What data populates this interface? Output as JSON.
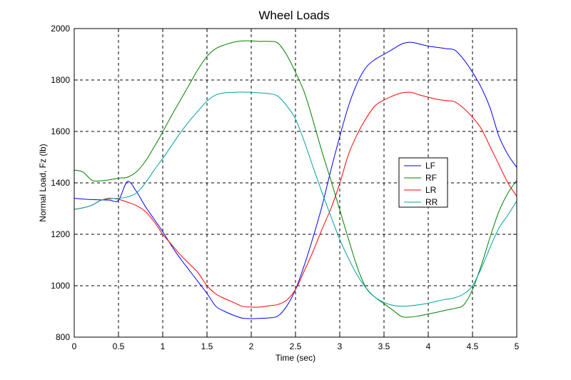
{
  "chart_data": {
    "type": "line",
    "title": "Wheel Loads",
    "xlabel": "Time (sec)",
    "ylabel": "Normal Load, Fz (lb)",
    "xlim": [
      0,
      5
    ],
    "ylim": [
      800,
      2000
    ],
    "xticks": [
      0,
      0.5,
      1,
      1.5,
      2,
      2.5,
      3,
      3.5,
      4,
      4.5,
      5
    ],
    "xtick_labels": [
      "0",
      "0.5",
      "1",
      "1.5",
      "2",
      "2.5",
      "3",
      "3.5",
      "4",
      "4.5",
      "5"
    ],
    "yticks": [
      800,
      1000,
      1200,
      1400,
      1600,
      1800,
      2000
    ],
    "ytick_labels": [
      "800",
      "1000",
      "1200",
      "1400",
      "1600",
      "1800",
      "2000"
    ],
    "grid": true,
    "legend_position": "center-right",
    "series": [
      {
        "name": "LF",
        "color": "#0000ff",
        "x": [
          0,
          0.1,
          0.2,
          0.3,
          0.4,
          0.5,
          0.6,
          0.7,
          0.8,
          0.9,
          1.0,
          1.1,
          1.2,
          1.3,
          1.4,
          1.5,
          1.6,
          1.7,
          1.8,
          1.9,
          2.0,
          2.1,
          2.2,
          2.3,
          2.4,
          2.5,
          2.6,
          2.7,
          2.8,
          2.9,
          3.0,
          3.1,
          3.2,
          3.3,
          3.4,
          3.5,
          3.6,
          3.7,
          3.8,
          3.9,
          4.0,
          4.1,
          4.2,
          4.3,
          4.4,
          4.5,
          4.6,
          4.7,
          4.8,
          4.9,
          5.0
        ],
        "y": [
          1340,
          1337,
          1335,
          1334,
          1333,
          1332,
          1405,
          1368,
          1310,
          1260,
          1210,
          1155,
          1105,
          1060,
          1015,
          970,
          920,
          900,
          885,
          874,
          872,
          873,
          875,
          882,
          920,
          985,
          1080,
          1190,
          1310,
          1450,
          1580,
          1700,
          1790,
          1850,
          1880,
          1900,
          1920,
          1940,
          1947,
          1940,
          1932,
          1927,
          1922,
          1916,
          1880,
          1830,
          1770,
          1690,
          1580,
          1510,
          1460
        ]
      },
      {
        "name": "RF",
        "color": "#008000",
        "x": [
          0,
          0.1,
          0.2,
          0.3,
          0.4,
          0.5,
          0.6,
          0.7,
          0.8,
          0.9,
          1.0,
          1.1,
          1.2,
          1.3,
          1.4,
          1.5,
          1.6,
          1.7,
          1.8,
          1.9,
          2.0,
          2.1,
          2.2,
          2.3,
          2.4,
          2.5,
          2.6,
          2.7,
          2.8,
          2.9,
          3.0,
          3.1,
          3.2,
          3.3,
          3.4,
          3.5,
          3.6,
          3.7,
          3.8,
          3.9,
          4.0,
          4.1,
          4.2,
          4.3,
          4.4,
          4.5,
          4.6,
          4.7,
          4.8,
          4.9,
          5.0
        ],
        "y": [
          1450,
          1442,
          1410,
          1408,
          1412,
          1418,
          1422,
          1442,
          1482,
          1538,
          1598,
          1662,
          1722,
          1782,
          1842,
          1892,
          1922,
          1937,
          1947,
          1952,
          1952,
          1950,
          1950,
          1944,
          1898,
          1830,
          1752,
          1640,
          1520,
          1410,
          1295,
          1180,
          1070,
          990,
          955,
          930,
          905,
          880,
          878,
          883,
          890,
          897,
          905,
          912,
          925,
          985,
          1080,
          1190,
          1290,
          1360,
          1410
        ]
      },
      {
        "name": "LR",
        "color": "#ff0000",
        "x": [
          0,
          0.1,
          0.2,
          0.3,
          0.4,
          0.5,
          0.6,
          0.7,
          0.8,
          0.9,
          1.0,
          1.1,
          1.2,
          1.3,
          1.4,
          1.5,
          1.6,
          1.7,
          1.8,
          1.9,
          2.0,
          2.1,
          2.2,
          2.3,
          2.4,
          2.5,
          2.6,
          2.7,
          2.8,
          2.9,
          3.0,
          3.1,
          3.2,
          3.3,
          3.4,
          3.5,
          3.6,
          3.7,
          3.8,
          3.9,
          4.0,
          4.1,
          4.2,
          4.3,
          4.4,
          4.5,
          4.6,
          4.7,
          4.8,
          4.9,
          5.0
        ],
        "y": [
          1297,
          1303,
          1313,
          1332,
          1340,
          1336,
          1325,
          1312,
          1290,
          1250,
          1200,
          1160,
          1120,
          1085,
          1050,
          1000,
          968,
          950,
          935,
          920,
          917,
          917,
          922,
          927,
          944,
          985,
          1058,
          1135,
          1220,
          1300,
          1398,
          1512,
          1590,
          1652,
          1700,
          1722,
          1738,
          1750,
          1752,
          1742,
          1733,
          1725,
          1720,
          1715,
          1690,
          1655,
          1610,
          1540,
          1470,
          1400,
          1348
        ]
      },
      {
        "name": "RR",
        "color": "#00a0a0",
        "x": [
          0,
          0.1,
          0.2,
          0.3,
          0.4,
          0.5,
          0.6,
          0.7,
          0.8,
          0.9,
          1.0,
          1.1,
          1.2,
          1.3,
          1.4,
          1.5,
          1.6,
          1.7,
          1.8,
          1.9,
          2.0,
          2.1,
          2.2,
          2.3,
          2.4,
          2.5,
          2.6,
          2.7,
          2.8,
          2.9,
          3.0,
          3.1,
          3.2,
          3.3,
          3.4,
          3.5,
          3.6,
          3.7,
          3.8,
          3.9,
          4.0,
          4.1,
          4.2,
          4.3,
          4.4,
          4.5,
          4.6,
          4.7,
          4.8,
          4.9,
          5.0
        ],
        "y": [
          1297,
          1303,
          1313,
          1332,
          1338,
          1340,
          1345,
          1360,
          1398,
          1448,
          1495,
          1545,
          1595,
          1640,
          1680,
          1718,
          1742,
          1750,
          1752,
          1753,
          1752,
          1750,
          1747,
          1737,
          1700,
          1648,
          1560,
          1460,
          1362,
          1270,
          1180,
          1105,
          1040,
          990,
          955,
          935,
          924,
          920,
          922,
          926,
          932,
          940,
          947,
          953,
          968,
          1000,
          1068,
          1150,
          1225,
          1275,
          1330
        ]
      }
    ]
  }
}
